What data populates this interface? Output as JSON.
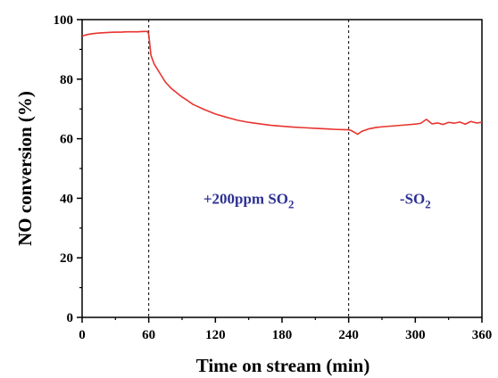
{
  "chart_data": {
    "type": "line",
    "title": "",
    "xlabel": "Time on stream (min)",
    "ylabel": "NO conversion (%)",
    "xlim": [
      0,
      360
    ],
    "ylim": [
      0,
      100
    ],
    "xticks": [
      0,
      60,
      120,
      180,
      240,
      300,
      360
    ],
    "yticks": [
      0,
      20,
      40,
      60,
      80,
      100
    ],
    "xtick_labels": [
      "0",
      "60",
      "120",
      "180",
      "240",
      "300",
      "360"
    ],
    "ytick_labels": [
      "0",
      "20",
      "40",
      "60",
      "80",
      "100"
    ],
    "grid": false,
    "legend": "none",
    "series_color": "#e8332e",
    "annotation_color": "#2e3192",
    "vlines": [
      60,
      240
    ],
    "annotations": [
      {
        "main": "+200ppm SO",
        "sub": "2",
        "x": 150,
        "y": 40
      },
      {
        "main": "-SO",
        "sub": "2",
        "x": 300,
        "y": 40
      }
    ],
    "series": [
      {
        "x": [
          0,
          5,
          10,
          15,
          20,
          25,
          30,
          35,
          40,
          45,
          50,
          55,
          59,
          60,
          62,
          65,
          70,
          75,
          80,
          85,
          90,
          95,
          100,
          110,
          120,
          130,
          140,
          150,
          160,
          170,
          180,
          190,
          200,
          210,
          220,
          230,
          240,
          242,
          245,
          248,
          252,
          258,
          265,
          270,
          280,
          290,
          300,
          305,
          310,
          315,
          320,
          325,
          330,
          335,
          340,
          345,
          350,
          355,
          360
        ],
        "values": [
          94.5,
          95,
          95.3,
          95.5,
          95.6,
          95.7,
          95.8,
          95.8,
          95.9,
          95.9,
          95.9,
          96,
          96,
          95,
          88,
          85,
          82,
          79,
          77,
          75.5,
          74,
          72.8,
          71.5,
          69.8,
          68.3,
          67.2,
          66.2,
          65.5,
          65,
          64.5,
          64.2,
          63.9,
          63.7,
          63.5,
          63.3,
          63.1,
          63,
          62.8,
          62.2,
          61.5,
          62.5,
          63.3,
          63.8,
          64,
          64.3,
          64.6,
          64.9,
          65.2,
          66.5,
          65,
          65.3,
          64.8,
          65.5,
          65.2,
          65.6,
          64.9,
          65.8,
          65.3,
          65.5
        ]
      }
    ]
  }
}
